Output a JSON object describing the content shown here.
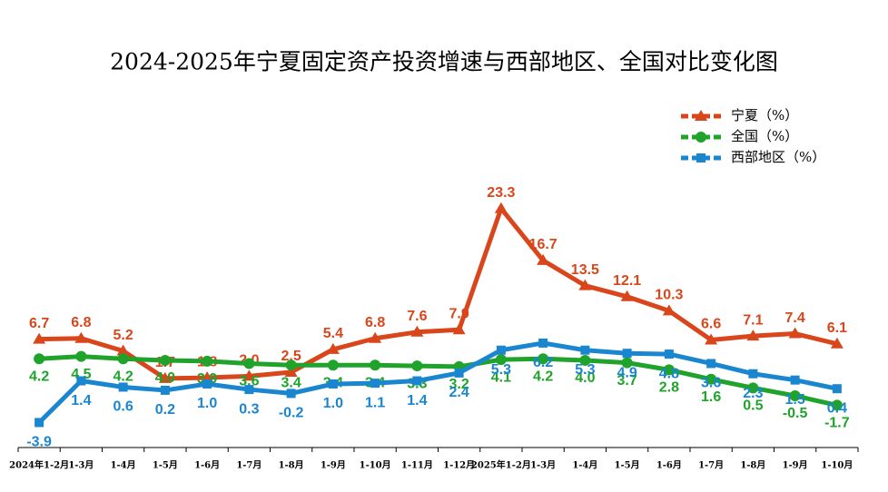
{
  "chart_data": {
    "type": "line",
    "title": "2024-2025年宁夏固定资产投资增速与西部地区、全国对比变化图",
    "categories": [
      "2024年1-2月",
      "1-3月",
      "1-4月",
      "1-5月",
      "1-6月",
      "1-7月",
      "1-8月",
      "1-9月",
      "1-10月",
      "1-11月",
      "1-12月",
      "2025年1-2月",
      "1-3月",
      "1-4月",
      "1-5月",
      "1-6月",
      "1-7月",
      "1-8月",
      "1-9月",
      "1-10月"
    ],
    "ylim": [
      -5,
      25
    ],
    "legend": "top-right",
    "series": [
      {
        "name": "宁夏（%）",
        "color": "#d9461b",
        "marker": "triangle",
        "values": [
          6.7,
          6.8,
          5.2,
          1.7,
          1.8,
          2.0,
          2.5,
          5.4,
          6.8,
          7.6,
          7.9,
          23.3,
          16.7,
          13.5,
          12.1,
          10.3,
          6.6,
          7.1,
          7.4,
          6.1
        ],
        "value_labels": [
          "6.7",
          "6.8",
          "5.2",
          "1.7",
          "1.8",
          "2.0",
          "2.5",
          "5.4",
          "6.8",
          "7.6",
          "7.9",
          "23.3",
          "16.7",
          "13.5",
          "12.1",
          "10.3",
          "6.6",
          "7.1",
          "7.4",
          "6.1"
        ]
      },
      {
        "name": "全国（%）",
        "color": "#1fa32a",
        "marker": "circle",
        "values": [
          4.2,
          4.5,
          4.2,
          4.0,
          3.9,
          3.6,
          3.4,
          3.4,
          3.4,
          3.3,
          3.2,
          4.1,
          4.2,
          4.0,
          3.7,
          2.8,
          1.6,
          0.5,
          -0.5,
          -1.7
        ],
        "value_labels": [
          "4.2",
          "4.5",
          "4.2",
          "4.0",
          "3.9",
          "3.6",
          "3.4",
          "3.4",
          "3.4",
          "3.3",
          "3.2",
          "4.1",
          "4.2",
          "4.0",
          "3.7",
          "2.8",
          "1.6",
          "0.5",
          "-0.5",
          "-1.7"
        ]
      },
      {
        "name": "西部地区（%）",
        "color": "#1a86d0",
        "marker": "square",
        "values": [
          -3.9,
          1.4,
          0.6,
          0.2,
          1.0,
          0.3,
          -0.2,
          1.0,
          1.1,
          1.4,
          2.4,
          5.3,
          6.2,
          5.3,
          4.9,
          4.8,
          3.6,
          2.3,
          1.5,
          0.4
        ],
        "value_labels": [
          "-3.9",
          "1.4",
          "0.6",
          "0.2",
          "1.0",
          "0.3",
          "-0.2",
          "1.0",
          "1.1",
          "1.4",
          "2.4",
          "5.3",
          "6.2",
          "5.3",
          "4.9",
          "4.8",
          "3.6",
          "2.3",
          "1.5",
          "0.4"
        ]
      }
    ]
  }
}
